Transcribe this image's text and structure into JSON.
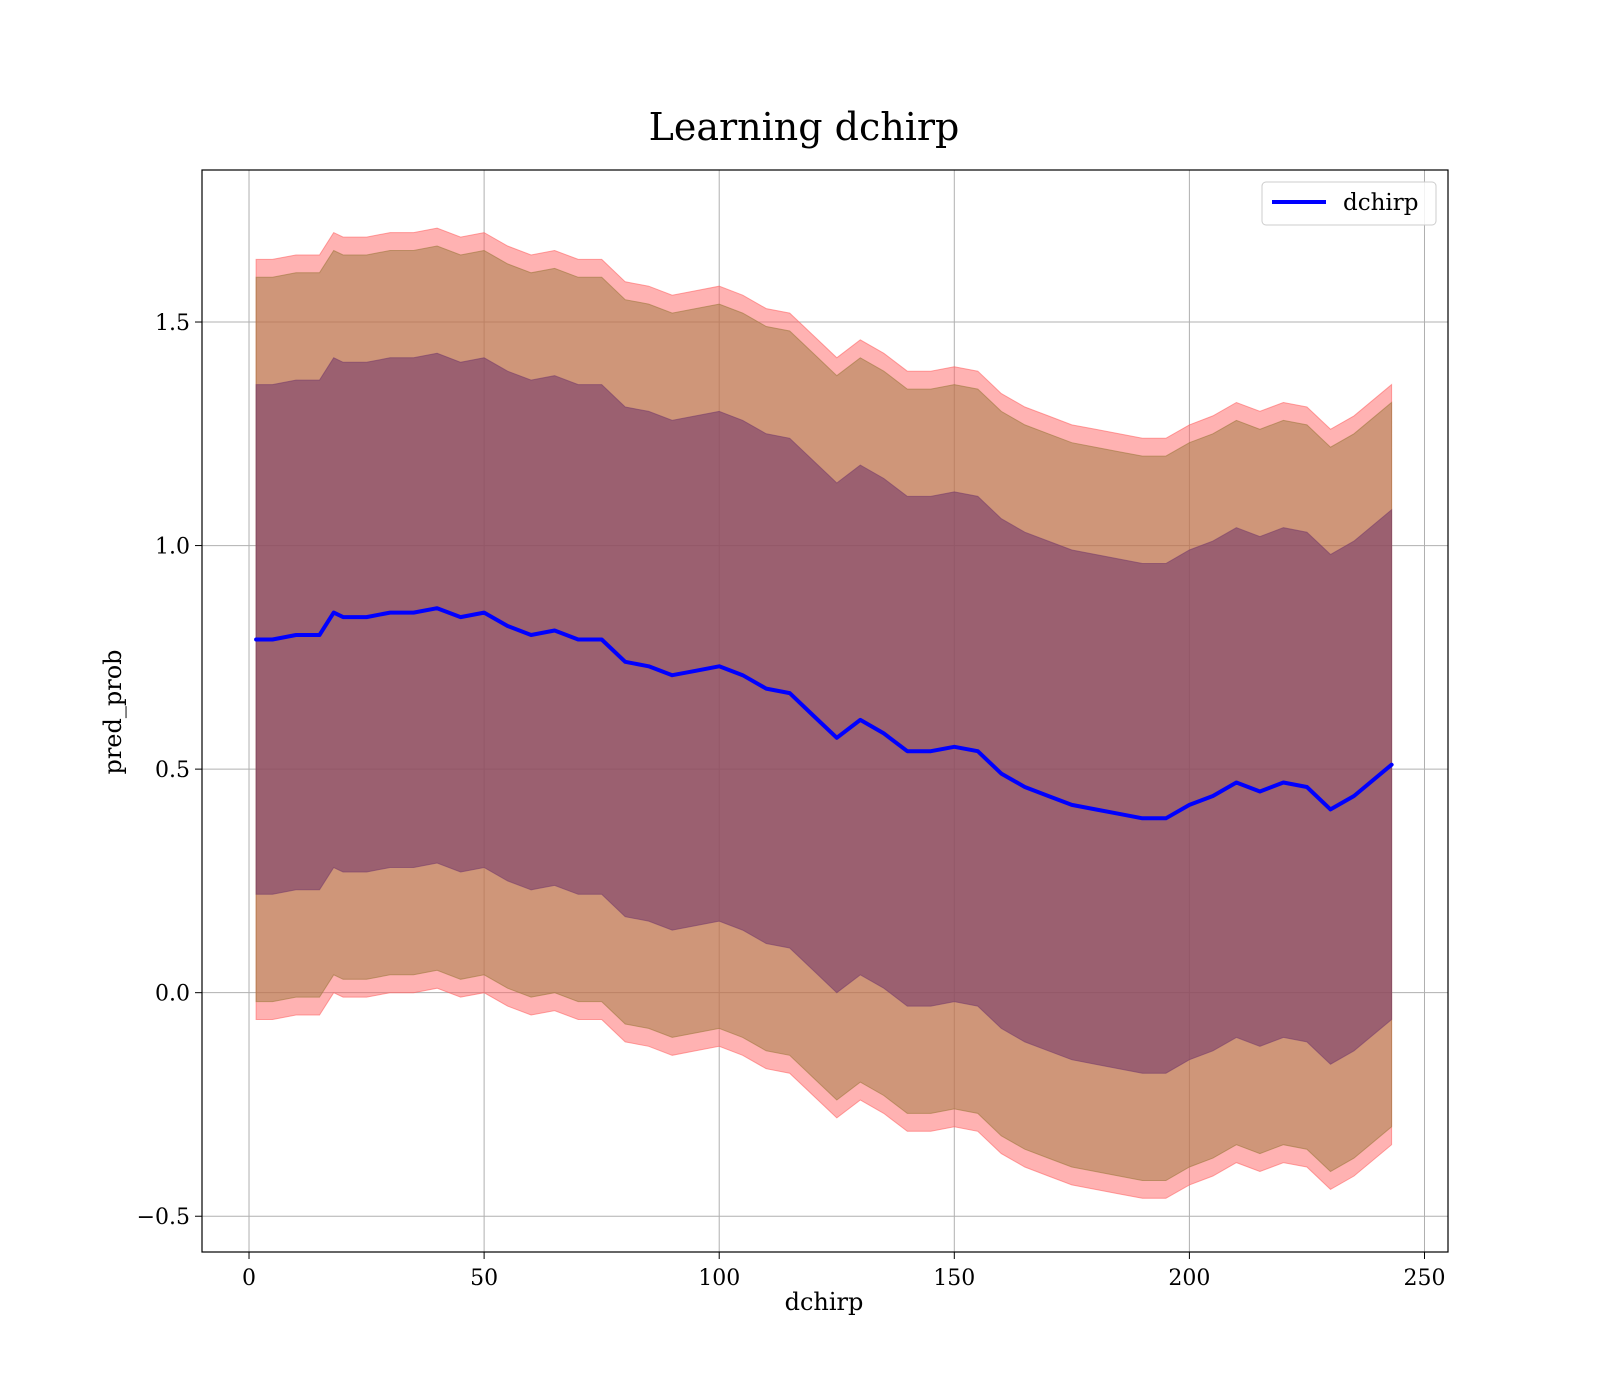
{
  "chart_data": {
    "type": "line",
    "title": "Learning dchirp",
    "xlabel": "dchirp",
    "ylabel": "pred_prob",
    "xlim": [
      -10,
      255
    ],
    "ylim": [
      -0.58,
      1.84
    ],
    "xticks": [
      0,
      50,
      100,
      150,
      200,
      250
    ],
    "xtick_labels": [
      "0",
      "50",
      "100",
      "150",
      "200",
      "250"
    ],
    "yticks": [
      -0.5,
      0.0,
      0.5,
      1.0,
      1.5
    ],
    "ytick_labels": [
      "−0.5",
      "0.0",
      "0.5",
      "1.0",
      "1.5"
    ],
    "grid": true,
    "legend_position": "top-right",
    "x": [
      1.5,
      5,
      10,
      15,
      18,
      20,
      25,
      30,
      35,
      40,
      45,
      50,
      55,
      60,
      65,
      70,
      75,
      80,
      85,
      90,
      95,
      100,
      105,
      110,
      115,
      120,
      125,
      130,
      135,
      140,
      145,
      150,
      155,
      160,
      165,
      170,
      175,
      180,
      185,
      190,
      195,
      200,
      205,
      210,
      215,
      220,
      225,
      230,
      235,
      243
    ],
    "series": [
      {
        "name": "dchirp",
        "color": "#0000ff",
        "values": [
          0.79,
          0.79,
          0.8,
          0.8,
          0.85,
          0.84,
          0.84,
          0.85,
          0.85,
          0.86,
          0.84,
          0.85,
          0.82,
          0.8,
          0.81,
          0.79,
          0.79,
          0.74,
          0.73,
          0.71,
          0.72,
          0.73,
          0.71,
          0.68,
          0.67,
          0.62,
          0.57,
          0.61,
          0.58,
          0.54,
          0.54,
          0.55,
          0.54,
          0.49,
          0.46,
          0.44,
          0.42,
          0.41,
          0.4,
          0.39,
          0.39,
          0.42,
          0.44,
          0.47,
          0.45,
          0.47,
          0.46,
          0.41,
          0.44,
          0.51
        ]
      }
    ],
    "bands": [
      {
        "color": "#ff6666",
        "opacity": 0.5,
        "lower": [
          -0.06,
          -0.06,
          -0.05,
          -0.05,
          0.0,
          -0.01,
          -0.01,
          0.0,
          0.0,
          0.01,
          -0.01,
          0.0,
          -0.03,
          -0.05,
          -0.04,
          -0.06,
          -0.06,
          -0.11,
          -0.12,
          -0.14,
          -0.13,
          -0.12,
          -0.14,
          -0.17,
          -0.18,
          -0.23,
          -0.28,
          -0.24,
          -0.27,
          -0.31,
          -0.31,
          -0.3,
          -0.31,
          -0.36,
          -0.39,
          -0.41,
          -0.43,
          -0.44,
          -0.45,
          -0.46,
          -0.46,
          -0.43,
          -0.41,
          -0.38,
          -0.4,
          -0.38,
          -0.39,
          -0.44,
          -0.41,
          -0.34
        ],
        "upper": [
          1.64,
          1.64,
          1.65,
          1.65,
          1.7,
          1.69,
          1.69,
          1.7,
          1.7,
          1.71,
          1.69,
          1.7,
          1.67,
          1.65,
          1.66,
          1.64,
          1.64,
          1.59,
          1.58,
          1.56,
          1.57,
          1.58,
          1.56,
          1.53,
          1.52,
          1.47,
          1.42,
          1.46,
          1.43,
          1.39,
          1.39,
          1.4,
          1.39,
          1.34,
          1.31,
          1.29,
          1.27,
          1.26,
          1.25,
          1.24,
          1.24,
          1.27,
          1.29,
          1.32,
          1.3,
          1.32,
          1.31,
          1.26,
          1.29,
          1.36
        ]
      },
      {
        "color": "#a0793f",
        "opacity": 0.5,
        "lower": [
          -0.02,
          -0.02,
          -0.01,
          -0.01,
          0.04,
          0.03,
          0.03,
          0.04,
          0.04,
          0.05,
          0.03,
          0.04,
          0.01,
          -0.01,
          0.0,
          -0.02,
          -0.02,
          -0.07,
          -0.08,
          -0.1,
          -0.09,
          -0.08,
          -0.1,
          -0.13,
          -0.14,
          -0.19,
          -0.24,
          -0.2,
          -0.23,
          -0.27,
          -0.27,
          -0.26,
          -0.27,
          -0.32,
          -0.35,
          -0.37,
          -0.39,
          -0.4,
          -0.41,
          -0.42,
          -0.42,
          -0.39,
          -0.37,
          -0.34,
          -0.36,
          -0.34,
          -0.35,
          -0.4,
          -0.37,
          -0.3
        ],
        "upper": [
          1.6,
          1.6,
          1.61,
          1.61,
          1.66,
          1.65,
          1.65,
          1.66,
          1.66,
          1.67,
          1.65,
          1.66,
          1.63,
          1.61,
          1.62,
          1.6,
          1.6,
          1.55,
          1.54,
          1.52,
          1.53,
          1.54,
          1.52,
          1.49,
          1.48,
          1.43,
          1.38,
          1.42,
          1.39,
          1.35,
          1.35,
          1.36,
          1.35,
          1.3,
          1.27,
          1.25,
          1.23,
          1.22,
          1.21,
          1.2,
          1.2,
          1.23,
          1.25,
          1.28,
          1.26,
          1.28,
          1.27,
          1.22,
          1.25,
          1.32
        ]
      },
      {
        "color": "#7a3f6a",
        "opacity": 0.62,
        "lower": [
          0.22,
          0.22,
          0.23,
          0.23,
          0.28,
          0.27,
          0.27,
          0.28,
          0.28,
          0.29,
          0.27,
          0.28,
          0.25,
          0.23,
          0.24,
          0.22,
          0.22,
          0.17,
          0.16,
          0.14,
          0.15,
          0.16,
          0.14,
          0.11,
          0.1,
          0.05,
          0.0,
          0.04,
          0.01,
          -0.03,
          -0.03,
          -0.02,
          -0.03,
          -0.08,
          -0.11,
          -0.13,
          -0.15,
          -0.16,
          -0.17,
          -0.18,
          -0.18,
          -0.15,
          -0.13,
          -0.1,
          -0.12,
          -0.1,
          -0.11,
          -0.16,
          -0.13,
          -0.06
        ],
        "upper": [
          1.36,
          1.36,
          1.37,
          1.37,
          1.42,
          1.41,
          1.41,
          1.42,
          1.42,
          1.43,
          1.41,
          1.42,
          1.39,
          1.37,
          1.38,
          1.36,
          1.36,
          1.31,
          1.3,
          1.28,
          1.29,
          1.3,
          1.28,
          1.25,
          1.24,
          1.19,
          1.14,
          1.18,
          1.15,
          1.11,
          1.11,
          1.12,
          1.11,
          1.06,
          1.03,
          1.01,
          0.99,
          0.98,
          0.97,
          0.96,
          0.96,
          0.99,
          1.01,
          1.04,
          1.02,
          1.04,
          1.03,
          0.98,
          1.01,
          1.08
        ]
      }
    ]
  }
}
